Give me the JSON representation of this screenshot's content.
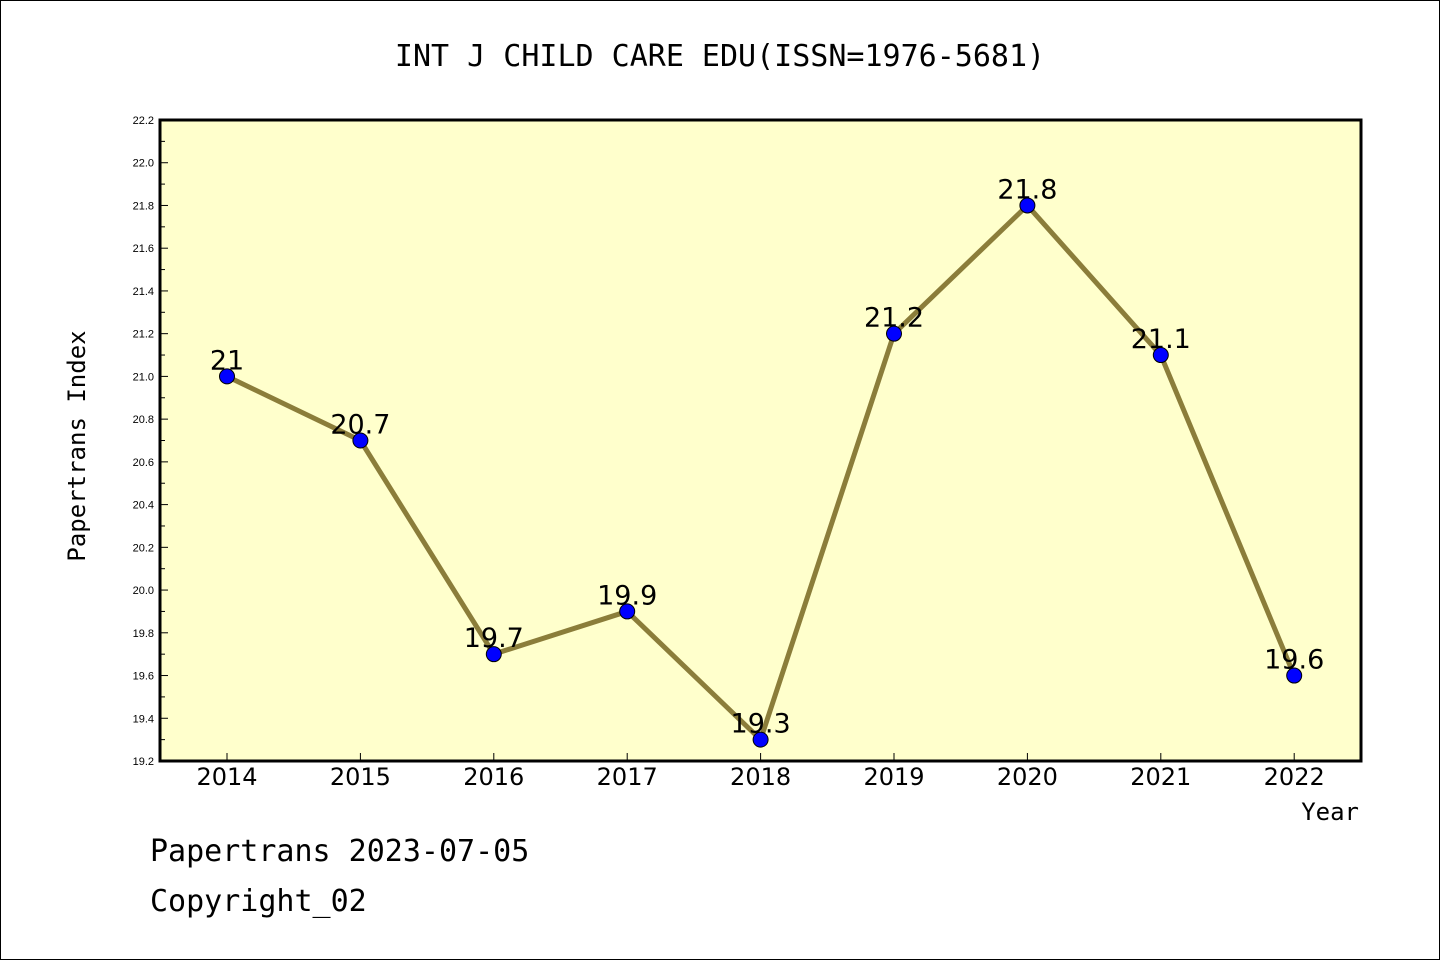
{
  "chart_data": {
    "type": "line",
    "title": "INT J CHILD CARE EDU(ISSN=1976-5681)",
    "xlabel": "Year",
    "ylabel": "Papertrans Index",
    "ylim": [
      19.2,
      22.2
    ],
    "yticks": [
      "19.2",
      "19.4",
      "19.6",
      "19.8",
      "20.0",
      "20.2",
      "20.4",
      "20.6",
      "20.8",
      "21.0",
      "21.2",
      "21.4",
      "21.6",
      "21.8",
      "22.0",
      "22.2"
    ],
    "categories": [
      "2014",
      "2015",
      "2016",
      "2017",
      "2018",
      "2019",
      "2020",
      "2021",
      "2022"
    ],
    "values": [
      21,
      20.7,
      19.7,
      19.9,
      19.3,
      21.2,
      21.8,
      21.1,
      19.6
    ],
    "data_labels": [
      "21",
      "20.7",
      "19.7",
      "19.9",
      "19.3",
      "21.2",
      "21.8",
      "21.1",
      "19.6"
    ],
    "grid": false,
    "plot_background": "#ffffcc",
    "line_color": "#8b7d3a",
    "marker_color": "#0000ff"
  },
  "footer": {
    "line1": "Papertrans 2023-07-05",
    "line2": "Copyright_02"
  }
}
